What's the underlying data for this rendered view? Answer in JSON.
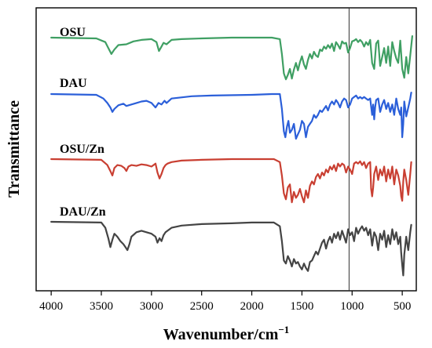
{
  "chart_data": {
    "type": "line",
    "title": "",
    "xlabel": "Wavenumber/cm",
    "xlabel_superscript": "−1",
    "ylabel": "Transmittance",
    "xlim": [
      4150,
      360
    ],
    "x_reversed": true,
    "y_ticks_shown": false,
    "grid": false,
    "legend": "inline labels above each trace",
    "x_ticks": [
      4000,
      3500,
      3000,
      2500,
      2000,
      1500,
      1000,
      500
    ],
    "reference_line_x": 1030,
    "series": [
      {
        "name": "OSU",
        "color": "#3f9f63",
        "baseline": 0.0,
        "x": [
          4000,
          3550,
          3460,
          3430,
          3400,
          3370,
          3330,
          3250,
          3180,
          3100,
          3000,
          2950,
          2925,
          2900,
          2880,
          2850,
          2800,
          2700,
          2500,
          2200,
          2000,
          1800,
          1720,
          1700,
          1680,
          1660,
          1640,
          1620,
          1600,
          1580,
          1560,
          1540,
          1520,
          1500,
          1480,
          1460,
          1440,
          1420,
          1400,
          1380,
          1360,
          1340,
          1320,
          1300,
          1280,
          1260,
          1240,
          1220,
          1200,
          1180,
          1160,
          1140,
          1120,
          1100,
          1080,
          1060,
          1040,
          1020,
          1000,
          980,
          960,
          940,
          920,
          900,
          880,
          860,
          840,
          820,
          800,
          780,
          760,
          740,
          720,
          700,
          680,
          660,
          640,
          620,
          600,
          580,
          560,
          540,
          520,
          500,
          480,
          460,
          440,
          420,
          400
        ],
        "y": [
          0,
          1,
          6,
          14,
          22,
          16,
          10,
          9,
          5,
          3,
          2,
          6,
          18,
          12,
          7,
          9,
          3,
          2,
          1,
          0,
          0,
          0,
          2,
          22,
          48,
          56,
          50,
          42,
          55,
          43,
          34,
          44,
          33,
          25,
          36,
          42,
          30,
          22,
          28,
          19,
          24,
          26,
          16,
          18,
          12,
          15,
          10,
          14,
          8,
          18,
          6,
          10,
          15,
          5,
          8,
          7,
          20,
          14,
          5,
          4,
          2,
          6,
          3,
          6,
          12,
          6,
          10,
          3,
          34,
          42,
          8,
          4,
          38,
          26,
          14,
          34,
          12,
          38,
          6,
          18,
          28,
          34,
          4,
          42,
          54,
          26,
          48,
          24,
          -2
        ]
      },
      {
        "name": "DAU",
        "color": "#2b5fd9",
        "baseline": 0.0,
        "x": [
          4000,
          3550,
          3480,
          3440,
          3410,
          3390,
          3370,
          3330,
          3280,
          3250,
          3200,
          3150,
          3100,
          3050,
          3000,
          2960,
          2930,
          2900,
          2870,
          2850,
          2800,
          2600,
          2400,
          2000,
          1800,
          1720,
          1700,
          1680,
          1665,
          1650,
          1635,
          1620,
          1600,
          1580,
          1560,
          1540,
          1520,
          1500,
          1480,
          1460,
          1440,
          1420,
          1400,
          1380,
          1360,
          1340,
          1320,
          1300,
          1280,
          1260,
          1240,
          1220,
          1200,
          1180,
          1160,
          1140,
          1120,
          1100,
          1080,
          1060,
          1040,
          1020,
          1000,
          980,
          960,
          940,
          920,
          900,
          880,
          860,
          840,
          820,
          800,
          790,
          780,
          770,
          760,
          740,
          720,
          700,
          680,
          660,
          640,
          620,
          600,
          580,
          560,
          540,
          520,
          510,
          500,
          490,
          480,
          460,
          440,
          420,
          410
        ],
        "y": [
          0,
          1,
          6,
          12,
          18,
          24,
          20,
          15,
          13,
          16,
          14,
          12,
          10,
          9,
          12,
          18,
          12,
          14,
          9,
          12,
          6,
          3,
          2,
          1,
          0,
          0,
          20,
          50,
          58,
          44,
          36,
          52,
          48,
          40,
          60,
          54,
          48,
          36,
          40,
          58,
          44,
          40,
          36,
          28,
          32,
          28,
          22,
          24,
          20,
          16,
          22,
          14,
          10,
          14,
          8,
          12,
          18,
          10,
          6,
          8,
          18,
          14,
          6,
          4,
          2,
          6,
          4,
          6,
          4,
          6,
          8,
          6,
          28,
          14,
          34,
          18,
          8,
          6,
          24,
          14,
          8,
          20,
          12,
          24,
          14,
          28,
          6,
          20,
          28,
          18,
          58,
          40,
          10,
          30,
          18,
          6,
          -2
        ]
      },
      {
        "name": "OSU/Zn",
        "color": "#c93f32",
        "baseline": 0.0,
        "x": [
          4000,
          3500,
          3440,
          3410,
          3390,
          3370,
          3340,
          3300,
          3270,
          3250,
          3230,
          3200,
          3150,
          3100,
          3050,
          3000,
          2960,
          2940,
          2920,
          2900,
          2880,
          2860,
          2840,
          2800,
          2700,
          2500,
          2200,
          2000,
          1780,
          1720,
          1700,
          1680,
          1660,
          1640,
          1620,
          1600,
          1580,
          1560,
          1540,
          1520,
          1500,
          1480,
          1460,
          1440,
          1420,
          1400,
          1380,
          1360,
          1340,
          1320,
          1300,
          1280,
          1260,
          1240,
          1220,
          1200,
          1180,
          1160,
          1140,
          1120,
          1100,
          1080,
          1060,
          1040,
          1020,
          1000,
          980,
          960,
          940,
          920,
          900,
          880,
          860,
          840,
          820,
          810,
          800,
          790,
          780,
          760,
          740,
          720,
          700,
          680,
          660,
          640,
          620,
          600,
          580,
          560,
          540,
          520,
          510,
          500,
          490,
          480,
          460,
          440,
          420,
          410
        ],
        "y": [
          0,
          1,
          8,
          16,
          22,
          12,
          8,
          9,
          12,
          16,
          10,
          8,
          9,
          7,
          8,
          10,
          6,
          18,
          26,
          20,
          12,
          8,
          6,
          4,
          2,
          1,
          0,
          0,
          0,
          4,
          22,
          46,
          54,
          38,
          34,
          58,
          44,
          52,
          48,
          40,
          50,
          58,
          42,
          52,
          36,
          30,
          34,
          24,
          20,
          26,
          18,
          22,
          14,
          18,
          10,
          14,
          8,
          16,
          6,
          10,
          6,
          8,
          18,
          10,
          14,
          20,
          6,
          4,
          6,
          3,
          8,
          4,
          12,
          6,
          4,
          40,
          50,
          38,
          20,
          10,
          28,
          14,
          22,
          10,
          30,
          14,
          26,
          10,
          34,
          14,
          22,
          36,
          50,
          56,
          30,
          14,
          28,
          48,
          20,
          4
        ]
      },
      {
        "name": "DAU/Zn",
        "color": "#444444",
        "baseline": 0.0,
        "x": [
          4000,
          3500,
          3460,
          3430,
          3410,
          3390,
          3370,
          3340,
          3310,
          3280,
          3260,
          3240,
          3220,
          3200,
          3150,
          3100,
          3050,
          3000,
          2960,
          2940,
          2920,
          2900,
          2880,
          2860,
          2840,
          2800,
          2700,
          2500,
          2200,
          2000,
          1780,
          1720,
          1700,
          1680,
          1660,
          1640,
          1620,
          1600,
          1580,
          1560,
          1540,
          1520,
          1500,
          1480,
          1460,
          1440,
          1420,
          1400,
          1380,
          1360,
          1340,
          1320,
          1300,
          1280,
          1260,
          1240,
          1220,
          1200,
          1180,
          1160,
          1140,
          1120,
          1100,
          1080,
          1060,
          1040,
          1020,
          1000,
          980,
          960,
          940,
          920,
          900,
          880,
          860,
          840,
          820,
          800,
          780,
          760,
          740,
          720,
          700,
          680,
          660,
          640,
          620,
          600,
          580,
          560,
          540,
          520,
          510,
          500,
          490,
          480,
          460,
          440,
          420,
          410
        ],
        "y": [
          0,
          1,
          8,
          22,
          34,
          24,
          16,
          20,
          26,
          30,
          34,
          38,
          30,
          20,
          14,
          12,
          14,
          16,
          20,
          28,
          22,
          26,
          18,
          14,
          12,
          8,
          5,
          3,
          2,
          1,
          1,
          6,
          26,
          52,
          56,
          46,
          52,
          60,
          50,
          56,
          54,
          60,
          64,
          56,
          62,
          66,
          54,
          52,
          46,
          40,
          44,
          36,
          28,
          24,
          36,
          26,
          20,
          28,
          16,
          22,
          14,
          24,
          12,
          20,
          28,
          10,
          18,
          14,
          26,
          8,
          16,
          10,
          6,
          12,
          8,
          18,
          10,
          32,
          14,
          20,
          38,
          16,
          24,
          12,
          34,
          18,
          30,
          10,
          24,
          14,
          30,
          20,
          42,
          58,
          72,
          44,
          20,
          38,
          14,
          4
        ]
      }
    ]
  }
}
